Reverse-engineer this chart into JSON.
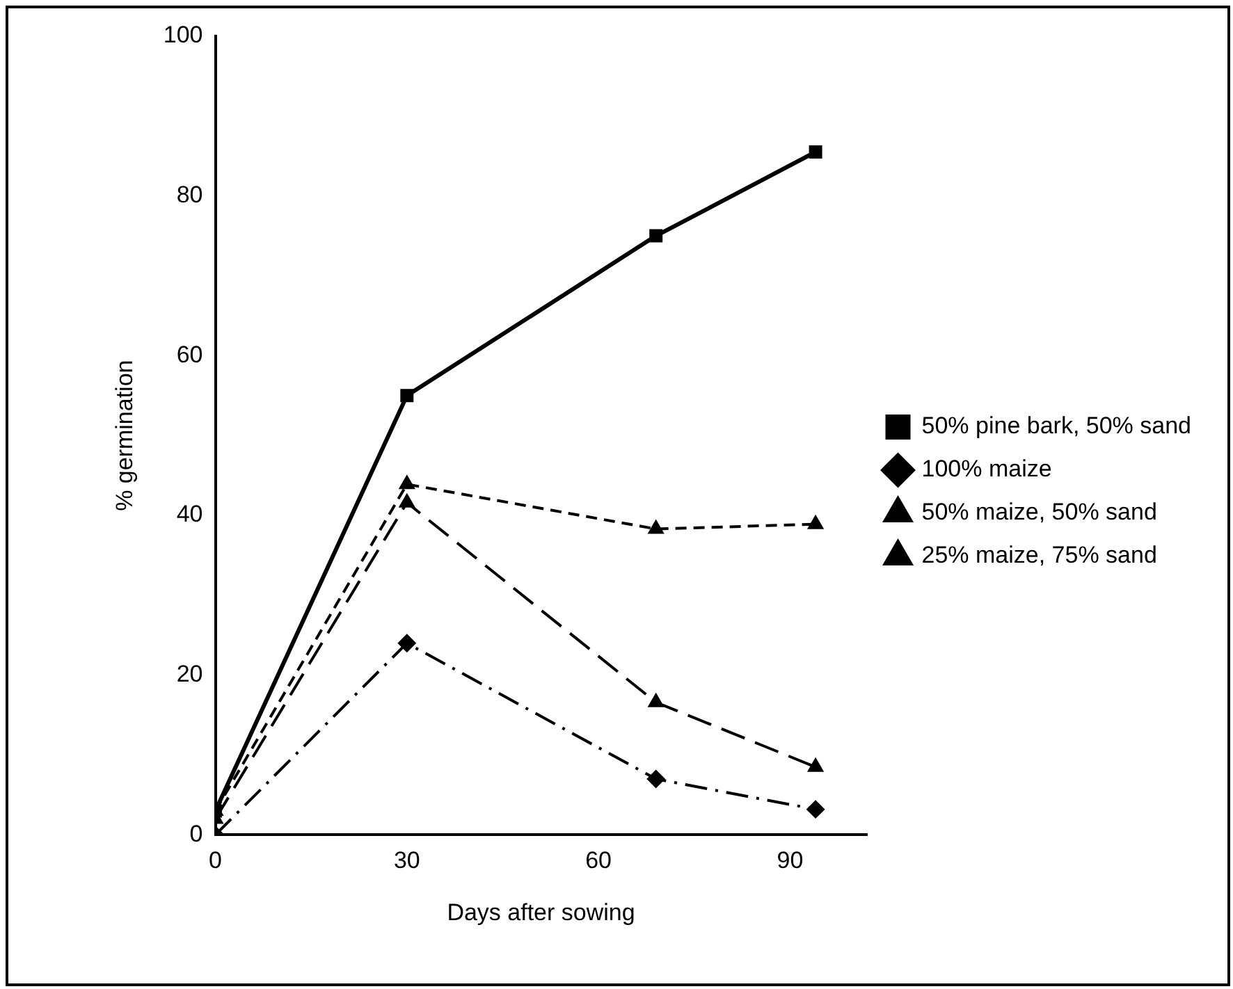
{
  "chart_data": {
    "type": "line",
    "xlabel": "Days after sowing",
    "ylabel": "% germination",
    "xlim": [
      0,
      102
    ],
    "xticks": [
      0,
      30,
      60,
      90
    ],
    "ylim": [
      0,
      100
    ],
    "yticks": [
      0,
      20,
      40,
      60,
      80,
      100
    ],
    "legend": "right",
    "grid": false,
    "series": [
      {
        "name": "50% pine bark, 50% sand",
        "color": "#000000",
        "marker": "square",
        "line_style": "solid",
        "x": [
          0,
          30,
          69,
          94
        ],
        "values": [
          3,
          55,
          75,
          85.5
        ]
      },
      {
        "name": "100% maize",
        "color": "#000000",
        "marker": "diamond",
        "line_style": "dashed",
        "x": [
          0,
          30,
          69,
          94
        ],
        "values": [
          0,
          24,
          7,
          3.2
        ]
      },
      {
        "name": "50% maize, 50% sand",
        "color": "#000000",
        "marker": "triangle",
        "line_style": "dashed",
        "x": [
          0,
          30,
          69,
          94
        ],
        "values": [
          2,
          41.6,
          16.6,
          8.5
        ]
      },
      {
        "name": "25% maize, 75% sand",
        "color": "#000000",
        "marker": "triangle",
        "line_style": "dashed",
        "x": [
          0,
          30,
          69,
          94
        ],
        "values": [
          3,
          43.9,
          38.3,
          38.9
        ]
      }
    ]
  }
}
